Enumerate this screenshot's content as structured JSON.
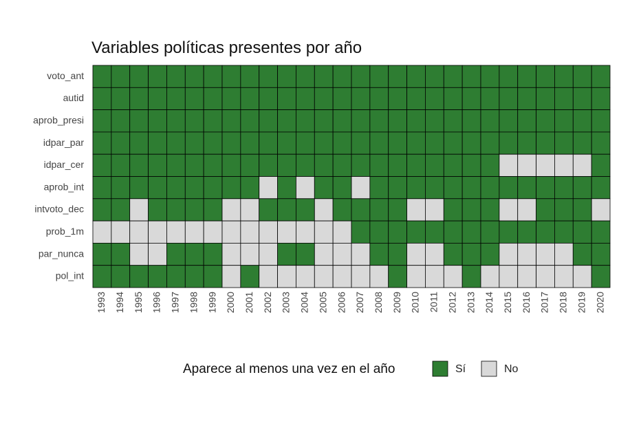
{
  "chart_data": {
    "type": "heatmap",
    "title": "Variables políticas presentes por año",
    "x": [
      1993,
      1994,
      1995,
      1996,
      1997,
      1998,
      1999,
      2000,
      2001,
      2002,
      2003,
      2004,
      2005,
      2006,
      2007,
      2008,
      2009,
      2010,
      2011,
      2012,
      2013,
      2014,
      2015,
      2016,
      2017,
      2018,
      2019,
      2020
    ],
    "categories": [
      "voto_ant",
      "autid",
      "aprob_presi",
      "idpar_par",
      "idpar_cer",
      "aprob_int",
      "intvoto_dec",
      "prob_1m",
      "par_nunca",
      "pol_int"
    ],
    "legend_title": "Aparece al menos una vez en el año",
    "legend": [
      {
        "name": "Sí",
        "color": "#2e7d32"
      },
      {
        "name": "No",
        "color": "#d9d9d9"
      }
    ],
    "values": [
      [
        "Sí",
        "Sí",
        "Sí",
        "Sí",
        "Sí",
        "Sí",
        "Sí",
        "Sí",
        "Sí",
        "Sí",
        "Sí",
        "Sí",
        "Sí",
        "Sí",
        "Sí",
        "Sí",
        "Sí",
        "Sí",
        "Sí",
        "Sí",
        "Sí",
        "Sí",
        "Sí",
        "Sí",
        "Sí",
        "Sí",
        "Sí",
        "Sí"
      ],
      [
        "Sí",
        "Sí",
        "Sí",
        "Sí",
        "Sí",
        "Sí",
        "Sí",
        "Sí",
        "Sí",
        "Sí",
        "Sí",
        "Sí",
        "Sí",
        "Sí",
        "Sí",
        "Sí",
        "Sí",
        "Sí",
        "Sí",
        "Sí",
        "Sí",
        "Sí",
        "Sí",
        "Sí",
        "Sí",
        "Sí",
        "Sí",
        "Sí"
      ],
      [
        "Sí",
        "Sí",
        "Sí",
        "Sí",
        "Sí",
        "Sí",
        "Sí",
        "Sí",
        "Sí",
        "Sí",
        "Sí",
        "Sí",
        "Sí",
        "Sí",
        "Sí",
        "Sí",
        "Sí",
        "Sí",
        "Sí",
        "Sí",
        "Sí",
        "Sí",
        "Sí",
        "Sí",
        "Sí",
        "Sí",
        "Sí",
        "Sí"
      ],
      [
        "Sí",
        "Sí",
        "Sí",
        "Sí",
        "Sí",
        "Sí",
        "Sí",
        "Sí",
        "Sí",
        "Sí",
        "Sí",
        "Sí",
        "Sí",
        "Sí",
        "Sí",
        "Sí",
        "Sí",
        "Sí",
        "Sí",
        "Sí",
        "Sí",
        "Sí",
        "Sí",
        "Sí",
        "Sí",
        "Sí",
        "Sí",
        "Sí"
      ],
      [
        "Sí",
        "Sí",
        "Sí",
        "Sí",
        "Sí",
        "Sí",
        "Sí",
        "Sí",
        "Sí",
        "Sí",
        "Sí",
        "Sí",
        "Sí",
        "Sí",
        "Sí",
        "Sí",
        "Sí",
        "Sí",
        "Sí",
        "Sí",
        "Sí",
        "Sí",
        "No",
        "No",
        "No",
        "No",
        "No",
        "Sí"
      ],
      [
        "Sí",
        "Sí",
        "Sí",
        "Sí",
        "Sí",
        "Sí",
        "Sí",
        "Sí",
        "Sí",
        "No",
        "Sí",
        "No",
        "Sí",
        "Sí",
        "No",
        "Sí",
        "Sí",
        "Sí",
        "Sí",
        "Sí",
        "Sí",
        "Sí",
        "Sí",
        "Sí",
        "Sí",
        "Sí",
        "Sí",
        "Sí"
      ],
      [
        "Sí",
        "Sí",
        "No",
        "Sí",
        "Sí",
        "Sí",
        "Sí",
        "No",
        "No",
        "Sí",
        "Sí",
        "Sí",
        "No",
        "Sí",
        "Sí",
        "Sí",
        "Sí",
        "No",
        "No",
        "Sí",
        "Sí",
        "Sí",
        "No",
        "No",
        "Sí",
        "Sí",
        "Sí",
        "No"
      ],
      [
        "No",
        "No",
        "No",
        "No",
        "No",
        "No",
        "No",
        "No",
        "No",
        "No",
        "No",
        "No",
        "No",
        "No",
        "Sí",
        "Sí",
        "Sí",
        "Sí",
        "Sí",
        "Sí",
        "Sí",
        "Sí",
        "Sí",
        "Sí",
        "Sí",
        "Sí",
        "Sí",
        "Sí"
      ],
      [
        "Sí",
        "Sí",
        "No",
        "No",
        "Sí",
        "Sí",
        "Sí",
        "No",
        "No",
        "No",
        "Sí",
        "Sí",
        "No",
        "No",
        "No",
        "Sí",
        "Sí",
        "No",
        "No",
        "Sí",
        "Sí",
        "Sí",
        "No",
        "No",
        "No",
        "No",
        "Sí",
        "Sí"
      ],
      [
        "Sí",
        "Sí",
        "Sí",
        "Sí",
        "Sí",
        "Sí",
        "Sí",
        "No",
        "Sí",
        "No",
        "No",
        "No",
        "No",
        "No",
        "No",
        "No",
        "Sí",
        "No",
        "No",
        "No",
        "Sí",
        "No",
        "No",
        "No",
        "No",
        "No",
        "No",
        "Sí"
      ]
    ]
  }
}
